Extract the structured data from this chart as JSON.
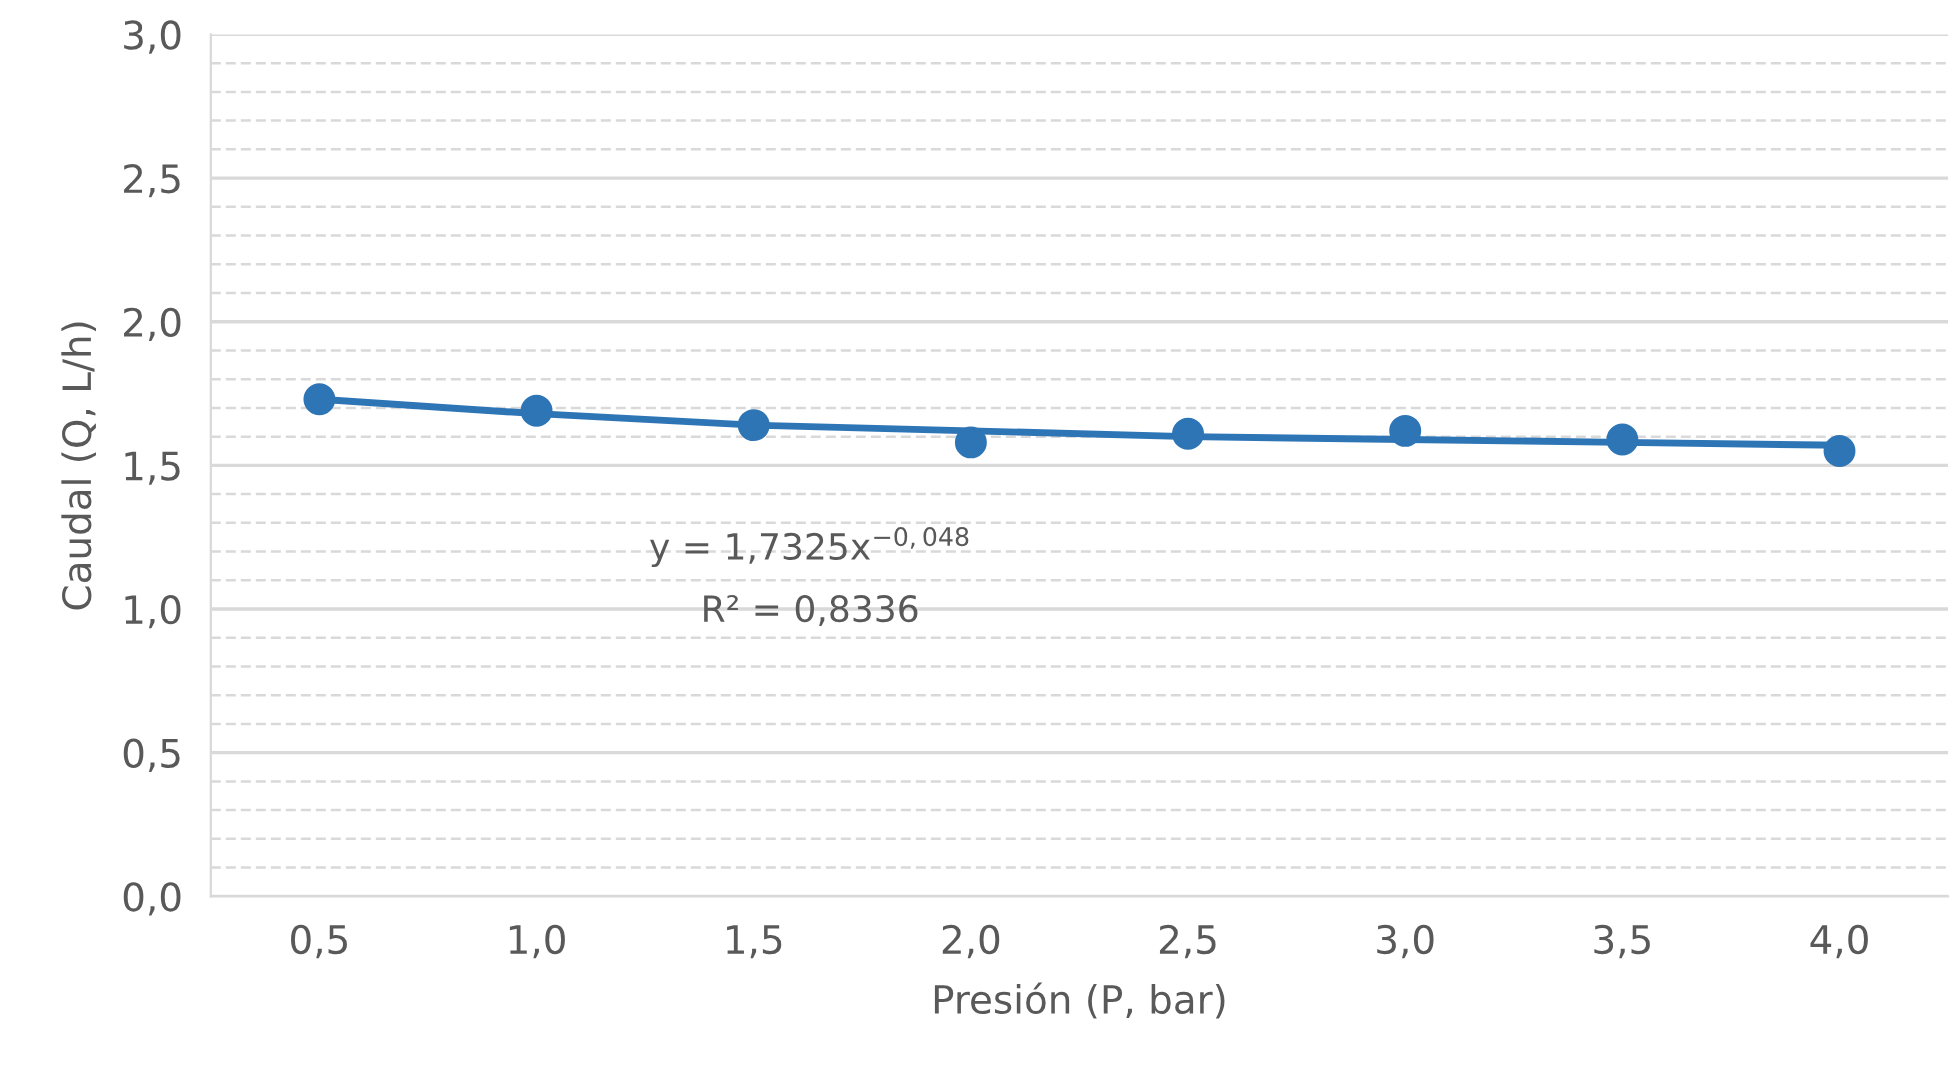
{
  "chart_data": {
    "type": "scatter",
    "xlabel": "Presión (P, bar)",
    "ylabel": "Caudal (Q, L/h)",
    "x": [
      0.5,
      1.0,
      1.5,
      2.0,
      2.5,
      3.0,
      3.5,
      4.0
    ],
    "series": [
      {
        "color": "#2e75b6",
        "marker": "circle",
        "values": [
          1.73,
          1.69,
          1.64,
          1.58,
          1.61,
          1.62,
          1.59,
          1.55
        ]
      },
      {
        "type": "line",
        "color": "#2e75b6",
        "x": [
          0.5,
          1.0,
          1.5,
          2.0,
          2.5,
          3.0,
          3.5,
          4.0
        ],
        "values": [
          1.73,
          1.68,
          1.64,
          1.62,
          1.6,
          1.59,
          1.58,
          1.57
        ]
      }
    ],
    "line_style": "solid",
    "grid": "y",
    "xlim": [
      0.25,
      4.25
    ],
    "xticks": [
      {
        "value": 0.5,
        "label": "0,5"
      },
      {
        "value": 1.0,
        "label": "1,0"
      },
      {
        "value": 1.5,
        "label": "1,5"
      },
      {
        "value": 2.0,
        "label": "2,0"
      },
      {
        "value": 2.5,
        "label": "2,5"
      },
      {
        "value": 3.0,
        "label": "3,0"
      },
      {
        "value": 3.5,
        "label": "3,5"
      },
      {
        "value": 4.0,
        "label": "4,0"
      }
    ],
    "ylim": [
      0,
      3.0
    ],
    "yticks": [
      {
        "value": 0.0,
        "label": "0,0"
      },
      {
        "value": 0.1,
        "label": null
      },
      {
        "value": 0.2,
        "label": null
      },
      {
        "value": 0.3,
        "label": null
      },
      {
        "value": 0.4,
        "label": null
      },
      {
        "value": 0.5,
        "label": "0,5"
      },
      {
        "value": 0.6,
        "label": null
      },
      {
        "value": 0.7,
        "label": null
      },
      {
        "value": 0.8,
        "label": null
      },
      {
        "value": 0.9,
        "label": null
      },
      {
        "value": 1.0,
        "label": "1,0"
      },
      {
        "value": 1.1,
        "label": null
      },
      {
        "value": 1.2,
        "label": null
      },
      {
        "value": 1.3,
        "label": null
      },
      {
        "value": 1.4,
        "label": null
      },
      {
        "value": 1.5,
        "label": "1,5"
      },
      {
        "value": 1.6,
        "label": null
      },
      {
        "value": 1.7,
        "label": null
      },
      {
        "value": 1.8,
        "label": null
      },
      {
        "value": 1.9,
        "label": null
      },
      {
        "value": 2.0,
        "label": "2,0"
      },
      {
        "value": 2.1,
        "label": null
      },
      {
        "value": 2.2,
        "label": null
      },
      {
        "value": 2.3,
        "label": null
      },
      {
        "value": 2.4,
        "label": null
      },
      {
        "value": 2.5,
        "label": "2,5"
      },
      {
        "value": 2.6,
        "label": null
      },
      {
        "value": 2.7,
        "label": null
      },
      {
        "value": 2.8,
        "label": null
      },
      {
        "value": 2.9,
        "label": null
      },
      {
        "value": 3.0,
        "label": "3,0"
      }
    ],
    "annotations": [
      "y = 1,7325x$^{−0,048}$",
      "R² = 0,8336"
    ]
  }
}
